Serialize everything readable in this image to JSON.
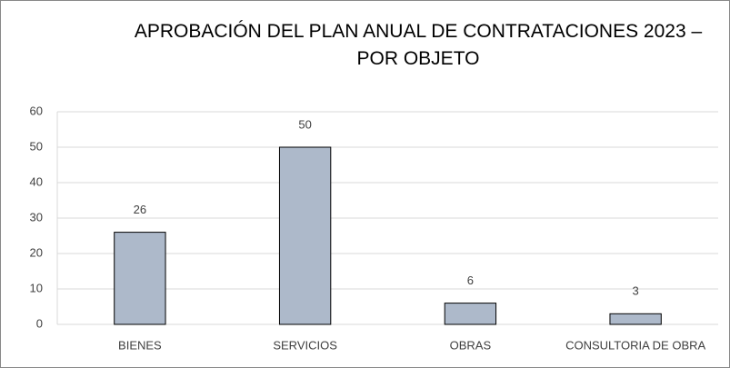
{
  "chart_data": {
    "type": "bar",
    "title": "APROBACIÓN DEL PLAN ANUAL DE CONTRATACIONES 2023 – POR OBJETO",
    "categories": [
      "BIENES",
      "SERVICIOS",
      "OBRAS",
      "CONSULTORIA DE OBRA"
    ],
    "values": [
      26,
      50,
      6,
      3
    ],
    "color": "#adb9ca",
    "ylim": [
      0,
      60
    ],
    "yticks": [
      0,
      10,
      20,
      30,
      40,
      50,
      60
    ],
    "grid": true,
    "data_labels": true
  }
}
